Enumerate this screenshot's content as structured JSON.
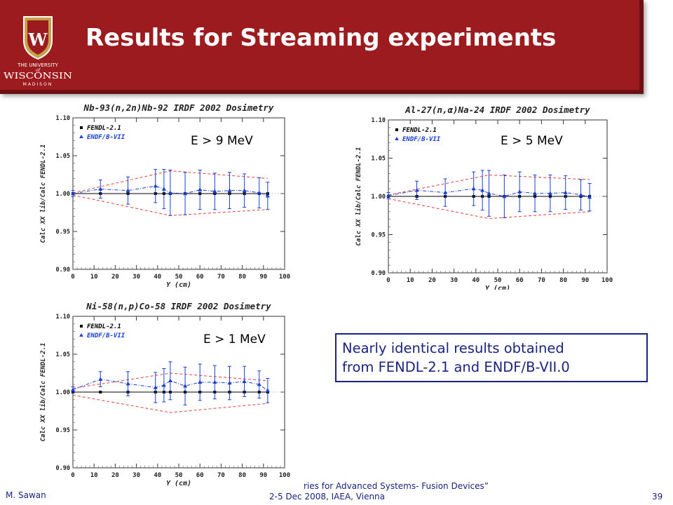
{
  "slide": {
    "title": "Results for Streaming experiments"
  },
  "logo": {
    "line1": "THE UNIVERSITY",
    "line2": "of",
    "line3": "WISCONSIN",
    "line4": "MADISON",
    "crest_letter": "W"
  },
  "note": {
    "line1": "Nearly identical results obtained",
    "line2": "from FENDL-2.1 and ENDF/B-VII.0"
  },
  "footer": {
    "author": "M. Sawan",
    "line1": "ries for Advanced Systems- Fusion Devices”",
    "line2": "2-5 Dec 2008, IAEA, Vienna",
    "page": "39"
  },
  "colors": {
    "header": "#9b1b1e",
    "fendl": "#000000",
    "endf": "#1a3fd1",
    "band": "#e04040",
    "note_text": "#1a237e"
  },
  "chart_data": [
    {
      "type": "scatter",
      "title": "Nb-93(n,2n)Nb-92 IRDF 2002 Dosimetry",
      "xlabel": "Y (cm)",
      "ylabel": "Calc XX lib/Calc FENDL-2.1",
      "annotation": "E > 9 MeV",
      "xlim": [
        0,
        100
      ],
      "ylim": [
        0.9,
        1.1
      ],
      "xticks": [
        "0",
        "10",
        "20",
        "30",
        "40",
        "50",
        "60",
        "70",
        "80",
        "90",
        "100"
      ],
      "yticks": [
        "0.90",
        "0.95",
        "1.00",
        "1.05",
        "1.10"
      ],
      "legend": [
        "FENDL-2.1",
        "ENDF/B-VII"
      ],
      "legend_position": "top-left",
      "series": [
        {
          "name": "FENDL-2.1",
          "x": [
            0,
            13,
            26,
            39,
            43,
            46,
            53,
            60,
            67,
            74,
            81,
            88,
            92
          ],
          "y": [
            1.0,
            1.0,
            1.0,
            1.0,
            1.0,
            1.0,
            1.0,
            1.0,
            1.0,
            1.0,
            1.0,
            1.0,
            1.0
          ]
        },
        {
          "name": "ENDF/B-VII",
          "x": [
            0,
            13,
            26,
            39,
            43,
            46,
            53,
            60,
            67,
            74,
            81,
            88,
            92
          ],
          "y": [
            1.0,
            1.006,
            1.004,
            1.01,
            1.006,
            1.001,
            1.0,
            1.005,
            1.003,
            1.004,
            1.004,
            1.001,
            0.997
          ],
          "err": [
            0.004,
            0.012,
            0.018,
            0.022,
            0.026,
            0.03,
            0.028,
            0.026,
            0.024,
            0.024,
            0.022,
            0.02,
            0.018
          ]
        }
      ],
      "band_upper": {
        "x": [
          0,
          46,
          92
        ],
        "y": [
          1.001,
          1.03,
          1.02
        ]
      },
      "band_lower": {
        "x": [
          0,
          46,
          92
        ],
        "y": [
          0.998,
          0.971,
          0.979
        ]
      }
    },
    {
      "type": "scatter",
      "title": "Al-27(n,α)Na-24 IRDF 2002 Dosimetry",
      "xlabel": "Y (cm)",
      "ylabel": "Calc XX lib/Calc FENDL-2.1",
      "annotation": "E > 5 MeV",
      "xlim": [
        0,
        100
      ],
      "ylim": [
        0.9,
        1.1
      ],
      "xticks": [
        "0",
        "10",
        "20",
        "30",
        "40",
        "50",
        "60",
        "70",
        "80",
        "90",
        "100"
      ],
      "yticks": [
        "0.90",
        "0.95",
        "1.00",
        "1.05",
        "1.10"
      ],
      "legend": [
        "FENDL-2.1",
        "ENDF/B-VII"
      ],
      "legend_position": "top-left",
      "series": [
        {
          "name": "FENDL-2.1",
          "x": [
            0,
            13,
            26,
            39,
            43,
            46,
            53,
            60,
            67,
            74,
            81,
            88,
            92
          ],
          "y": [
            1.0,
            1.0,
            1.0,
            1.0,
            1.0,
            1.0,
            1.0,
            1.0,
            1.0,
            1.0,
            1.0,
            1.0,
            1.0
          ]
        },
        {
          "name": "ENDF/B-VII",
          "x": [
            0,
            13,
            26,
            39,
            43,
            46,
            53,
            60,
            67,
            74,
            81,
            88,
            92
          ],
          "y": [
            1.001,
            1.008,
            1.005,
            1.01,
            1.008,
            1.004,
            1.0,
            1.006,
            1.004,
            1.004,
            1.005,
            1.002,
            0.999
          ],
          "err": [
            0.004,
            0.012,
            0.018,
            0.022,
            0.026,
            0.03,
            0.028,
            0.026,
            0.024,
            0.024,
            0.022,
            0.02,
            0.018
          ]
        }
      ],
      "band_upper": {
        "x": [
          0,
          46,
          92
        ],
        "y": [
          1.002,
          1.028,
          1.022
        ]
      },
      "band_lower": {
        "x": [
          0,
          46,
          92
        ],
        "y": [
          0.997,
          0.971,
          0.98
        ]
      }
    },
    {
      "type": "scatter",
      "title": "Ni-58(n,p)Co-58 IRDF 2002 Dosimetry",
      "xlabel": "Y (cm)",
      "ylabel": "Calc XX lib/Calc FENDL-2.1",
      "annotation": "E > 1 MeV",
      "xlim": [
        0,
        100
      ],
      "ylim": [
        0.9,
        1.1
      ],
      "xticks": [
        "0",
        "10",
        "20",
        "30",
        "40",
        "50",
        "60",
        "70",
        "80",
        "90",
        "100"
      ],
      "yticks": [
        "0.90",
        "0.95",
        "1.00",
        "1.05",
        "1.10"
      ],
      "legend": [
        "FENDL-2.1",
        "ENDF/B-VII"
      ],
      "legend_position": "top-left",
      "series": [
        {
          "name": "FENDL-2.1",
          "x": [
            0,
            13,
            26,
            39,
            43,
            46,
            53,
            60,
            67,
            74,
            81,
            88,
            92
          ],
          "y": [
            1.0,
            1.0,
            1.0,
            1.0,
            1.0,
            1.0,
            1.0,
            1.0,
            1.0,
            1.0,
            1.0,
            1.0,
            1.0
          ]
        },
        {
          "name": "ENDF/B-VII",
          "x": [
            0,
            13,
            26,
            39,
            43,
            46,
            53,
            60,
            67,
            74,
            81,
            88,
            92
          ],
          "y": [
            1.003,
            1.017,
            1.011,
            1.006,
            1.009,
            1.015,
            1.008,
            1.013,
            1.013,
            1.012,
            1.014,
            1.01,
            1.002
          ],
          "err": [
            0.004,
            0.01,
            0.016,
            0.02,
            0.022,
            0.025,
            0.025,
            0.024,
            0.022,
            0.022,
            0.02,
            0.018,
            0.016
          ]
        }
      ],
      "band_upper": {
        "x": [
          0,
          46,
          92
        ],
        "y": [
          1.005,
          1.025,
          1.015
        ]
      },
      "band_lower": {
        "x": [
          0,
          46,
          92
        ],
        "y": [
          0.996,
          0.973,
          0.985
        ]
      }
    }
  ]
}
